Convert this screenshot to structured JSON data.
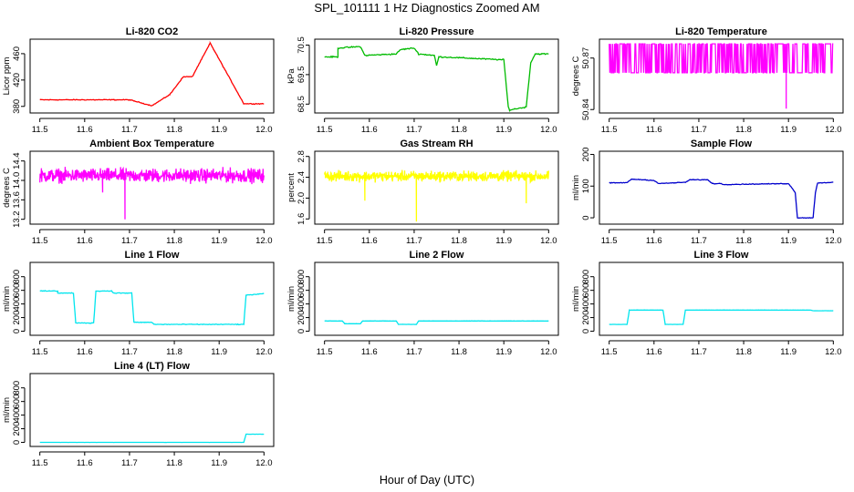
{
  "figure": {
    "title": "SPL_101111  1 Hz Diagnostics Zoomed AM",
    "xlabel": "Hour of Day (UTC)"
  },
  "chart_data": [
    {
      "type": "line",
      "title": "Li-820 CO2",
      "ylabel": "Licor ppm",
      "xlim": [
        11.5,
        12.0
      ],
      "ylim": [
        370,
        482
      ],
      "grid": false,
      "xticks": [
        "11.5",
        "11.6",
        "11.7",
        "11.8",
        "11.9",
        "12.0"
      ],
      "yticks": [
        "380",
        "420",
        "460"
      ],
      "color": "#ff0000",
      "noise": 0.9,
      "x": [
        11.5,
        11.7,
        11.75,
        11.75,
        11.79,
        11.79,
        11.82,
        11.82,
        11.84,
        11.84,
        11.88,
        11.88,
        11.955,
        11.955,
        12.0
      ],
      "y": [
        390,
        390,
        381,
        381,
        398,
        398,
        425,
        425,
        425,
        425,
        476,
        476,
        384,
        384,
        384
      ],
      "step": true
    },
    {
      "type": "line",
      "title": "Li-820 Pressure",
      "ylabel": "kPa",
      "xlim": [
        11.5,
        12.0
      ],
      "ylim": [
        68.2,
        70.7
      ],
      "grid": false,
      "xticks": [
        "11.5",
        "11.6",
        "11.7",
        "11.8",
        "11.9",
        "12.0"
      ],
      "yticks": [
        "68.5",
        "69.5",
        "70.5"
      ],
      "color": "#00bb00",
      "noise": 0.03,
      "x": [
        11.5,
        11.53,
        11.53,
        11.58,
        11.59,
        11.66,
        11.67,
        11.7,
        11.71,
        11.745,
        11.75,
        11.755,
        11.76,
        11.9,
        11.91,
        11.913,
        11.93,
        11.95,
        11.96,
        11.97,
        12.0
      ],
      "y": [
        70.1,
        70.1,
        70.4,
        70.45,
        70.15,
        70.2,
        70.35,
        70.4,
        70.2,
        70.15,
        69.8,
        70.1,
        70.1,
        70.0,
        68.4,
        68.3,
        68.35,
        68.4,
        69.9,
        70.2,
        70.2
      ],
      "step": false
    },
    {
      "type": "line",
      "title": "Li-820 Temperature",
      "ylabel": "degrees C",
      "xlim": [
        11.5,
        12.0
      ],
      "ylim": [
        50.838,
        50.881
      ],
      "grid": false,
      "xticks": [
        "11.5",
        "11.6",
        "11.7",
        "11.8",
        "11.9",
        "12.0"
      ],
      "yticks": [
        "50.84",
        "50.87"
      ],
      "color": "#ff00ff",
      "mode": "binary",
      "levels": [
        50.8614,
        50.8783
      ],
      "spike": {
        "x": 11.895,
        "y": 50.8405
      }
    },
    {
      "type": "line",
      "title": "Ambient Box Temperature",
      "ylabel": "degrees C",
      "xlim": [
        11.5,
        12.0
      ],
      "ylim": [
        13.1,
        14.6
      ],
      "grid": false,
      "xticks": [
        "11.5",
        "11.6",
        "11.7",
        "11.8",
        "11.9",
        "12.0"
      ],
      "yticks": [
        "13.2",
        "13.6",
        "14.0",
        "14.4"
      ],
      "color": "#ff00ff",
      "mode": "noise",
      "center": 14.1,
      "amp": 0.23,
      "spikes": [
        {
          "x": 11.69,
          "y": 13.2
        },
        {
          "x": 11.64,
          "y": 13.75
        }
      ]
    },
    {
      "type": "line",
      "title": "Gas Stream RH",
      "ylabel": "percent",
      "xlim": [
        11.5,
        12.0
      ],
      "ylim": [
        1.5,
        2.9
      ],
      "grid": false,
      "xticks": [
        "11.5",
        "11.6",
        "11.7",
        "11.8",
        "11.9",
        "12.0"
      ],
      "yticks": [
        "1.6",
        "2.0",
        "2.4",
        "2.8"
      ],
      "color": "#ffff00",
      "mode": "noise",
      "center": 2.42,
      "amp": 0.16,
      "spikes": [
        {
          "x": 11.705,
          "y": 1.55
        },
        {
          "x": 11.59,
          "y": 1.95
        },
        {
          "x": 11.95,
          "y": 1.9
        }
      ]
    },
    {
      "type": "line",
      "title": "Sample Flow",
      "ylabel": "ml/min",
      "xlim": [
        11.5,
        12.0
      ],
      "ylim": [
        -20,
        210
      ],
      "grid": false,
      "xticks": [
        "11.5",
        "11.6",
        "11.7",
        "11.8",
        "11.9",
        "12.0"
      ],
      "yticks": [
        "0",
        "100",
        "200"
      ],
      "color": "#0000cc",
      "noise": 1.5,
      "x": [
        11.5,
        11.54,
        11.55,
        11.6,
        11.61,
        11.67,
        11.68,
        11.72,
        11.73,
        11.75,
        11.755,
        11.9,
        11.915,
        11.92,
        11.955,
        11.96,
        11.965,
        12.0
      ],
      "y": [
        110,
        111,
        122,
        118,
        108,
        112,
        120,
        120,
        108,
        108,
        105,
        108,
        80,
        0,
        0,
        80,
        110,
        112
      ],
      "step": false
    },
    {
      "type": "line",
      "title": "Line 1 Flow",
      "ylabel": "ml/min",
      "xlim": [
        11.5,
        12.0
      ],
      "ylim": [
        -60,
        1010
      ],
      "grid": false,
      "xticks": [
        "11.5",
        "11.6",
        "11.7",
        "11.8",
        "11.9",
        "12.0"
      ],
      "yticks": [
        "0",
        "200",
        "400",
        "600",
        "800"
      ],
      "color": "#00e5ee",
      "noise": 8,
      "x": [
        11.5,
        11.54,
        11.54,
        11.575,
        11.58,
        11.62,
        11.625,
        11.66,
        11.665,
        11.705,
        11.71,
        11.75,
        11.755,
        11.955,
        11.96,
        12.0
      ],
      "y": [
        590,
        590,
        560,
        560,
        120,
        120,
        590,
        590,
        560,
        560,
        130,
        130,
        100,
        100,
        530,
        550
      ],
      "step": false
    },
    {
      "type": "line",
      "title": "Line 2 Flow",
      "ylabel": "ml/min",
      "xlim": [
        11.5,
        12.0
      ],
      "ylim": [
        -60,
        1010
      ],
      "grid": false,
      "xticks": [
        "11.5",
        "11.6",
        "11.7",
        "11.8",
        "11.9",
        "12.0"
      ],
      "yticks": [
        "0",
        "200",
        "400",
        "600",
        "800"
      ],
      "color": "#00e5ee",
      "noise": 2,
      "x": [
        11.5,
        11.54,
        11.545,
        11.58,
        11.585,
        11.66,
        11.665,
        11.705,
        11.71,
        12.0
      ],
      "y": [
        150,
        150,
        110,
        110,
        150,
        150,
        100,
        100,
        150,
        150
      ],
      "step": false
    },
    {
      "type": "line",
      "title": "Line 3 Flow",
      "ylabel": "ml/min",
      "xlim": [
        11.5,
        12.0
      ],
      "ylim": [
        -60,
        1010
      ],
      "grid": false,
      "xticks": [
        "11.5",
        "11.6",
        "11.7",
        "11.8",
        "11.9",
        "12.0"
      ],
      "yticks": [
        "0",
        "200",
        "400",
        "600",
        "800"
      ],
      "color": "#00e5ee",
      "noise": 2,
      "x": [
        11.5,
        11.54,
        11.545,
        11.62,
        11.625,
        11.665,
        11.67,
        11.95,
        11.955,
        12.0
      ],
      "y": [
        100,
        100,
        310,
        310,
        100,
        100,
        310,
        310,
        300,
        300
      ],
      "step": false
    },
    {
      "type": "line",
      "title": "Line 4 (LT) Flow",
      "ylabel": "ml/min",
      "xlim": [
        11.5,
        12.0
      ],
      "ylim": [
        -60,
        1010
      ],
      "grid": false,
      "xticks": [
        "11.5",
        "11.6",
        "11.7",
        "11.8",
        "11.9",
        "12.0"
      ],
      "yticks": [
        "0",
        "200",
        "400",
        "600",
        "800"
      ],
      "color": "#00e5ee",
      "noise": 1,
      "x": [
        11.5,
        11.955,
        11.96,
        12.0
      ],
      "y": [
        0,
        0,
        120,
        120
      ],
      "step": false
    }
  ]
}
